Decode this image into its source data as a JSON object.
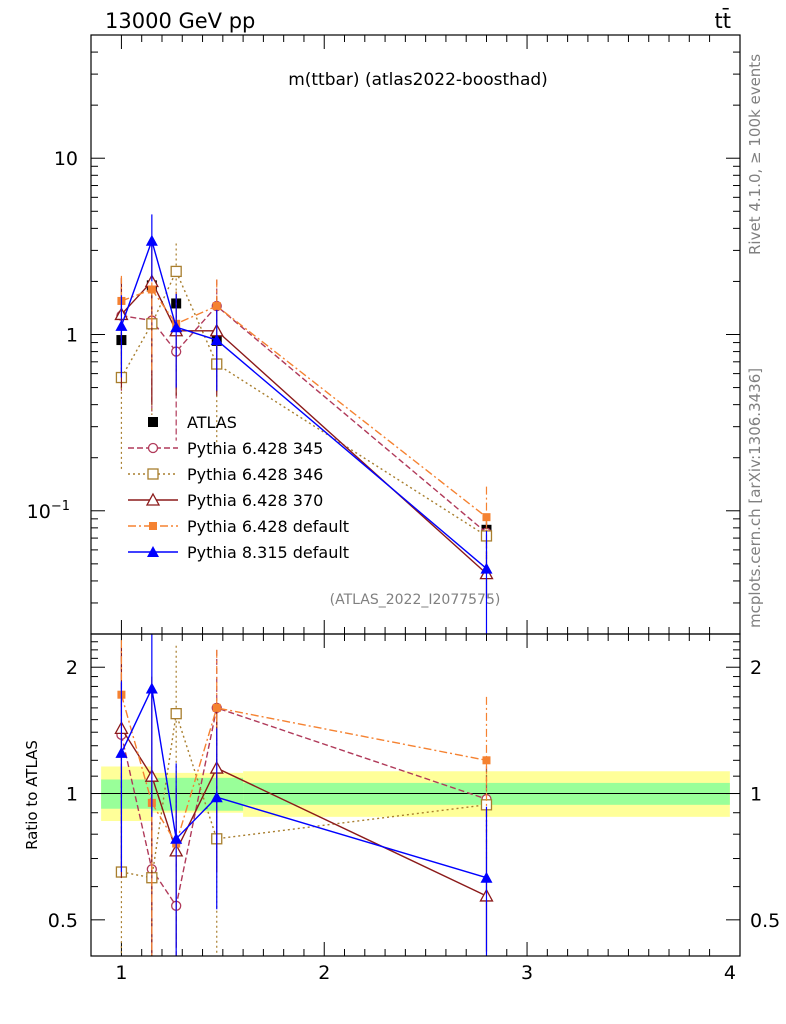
{
  "header": {
    "left": "13000 GeV pp",
    "right": "tt̄"
  },
  "side_labels": {
    "rivet": "Rivet 4.1.0, ≥ 100k events",
    "mcplots": "mcplots.cern.ch [arXiv:1306.3436]"
  },
  "chart_data": [
    {
      "type": "line",
      "title": "m(ttbar) (atlas2022-boosthad)",
      "watermark": "(ATLAS_2022_I2077575)",
      "xlim": [
        0.85,
        4.05
      ],
      "ylim": [
        0.02,
        50
      ],
      "yscale": "log",
      "yticks": [
        {
          "value": 0.1,
          "label": "10^-1"
        },
        {
          "value": 1,
          "label": "1"
        },
        {
          "value": 10,
          "label": "10"
        }
      ],
      "series": [
        {
          "name": "ATLAS",
          "color": "#000000",
          "marker": "square-filled",
          "line": "none",
          "x": [
            1.0,
            1.15,
            1.27,
            1.47,
            2.8
          ],
          "y": [
            0.93,
            1.9,
            1.5,
            0.92,
            0.078
          ],
          "err": [
            0.1,
            0.3,
            0.25,
            0.1,
            0.01
          ]
        },
        {
          "name": "Pythia 6.428 345",
          "color": "#b03a5a",
          "marker": "circle-open",
          "line": "dashed",
          "x": [
            1.0,
            1.15,
            1.27,
            1.47,
            2.8
          ],
          "y": [
            1.28,
            1.2,
            0.8,
            1.45,
            0.075
          ],
          "err": [
            0.8,
            0.85,
            0.55,
            0.6,
            0.02
          ]
        },
        {
          "name": "Pythia 6.428 346",
          "color": "#a87e2e",
          "marker": "square-open",
          "line": "dotted",
          "x": [
            1.0,
            1.15,
            1.27,
            1.47,
            2.8
          ],
          "y": [
            0.57,
            1.15,
            2.28,
            0.68,
            0.072
          ],
          "err": [
            0.4,
            0.8,
            1.0,
            0.45,
            0.02
          ]
        },
        {
          "name": "Pythia 6.428 370",
          "color": "#8b1a1a",
          "marker": "triangle-open",
          "line": "solid",
          "x": [
            1.0,
            1.15,
            1.27,
            1.47,
            2.8
          ],
          "y": [
            1.3,
            2.0,
            1.05,
            1.05,
            0.044
          ],
          "err": [
            0.8,
            1.6,
            0.6,
            0.6,
            0.012
          ]
        },
        {
          "name": "Pythia 6.428 default",
          "color": "#f58231",
          "marker": "square-filled-small",
          "line": "dashdot",
          "x": [
            1.0,
            1.15,
            1.27,
            1.47,
            2.8
          ],
          "y": [
            1.55,
            1.8,
            1.15,
            1.45,
            0.092
          ],
          "err": [
            0.6,
            1.2,
            0.6,
            0.6,
            0.045
          ]
        },
        {
          "name": "Pythia 8.315 default",
          "color": "#0000ff",
          "marker": "triangle-filled",
          "line": "solid",
          "x": [
            1.0,
            1.15,
            1.27,
            1.47,
            2.8
          ],
          "y": [
            1.12,
            3.4,
            1.1,
            0.93,
            0.047
          ],
          "err": [
            0.55,
            1.4,
            0.6,
            0.45,
            0.03
          ]
        }
      ]
    },
    {
      "type": "line",
      "ylabel": "Ratio to ATLAS",
      "xlim": [
        0.85,
        4.05
      ],
      "ylim": [
        0.41,
        2.4
      ],
      "yscale": "log",
      "xticks": [
        1,
        2,
        3,
        4
      ],
      "yticks": [
        0.5,
        1,
        2
      ],
      "band_inner": [
        {
          "x0": 0.9,
          "x1": 1.15,
          "lo": 0.92,
          "hi": 1.08
        },
        {
          "x0": 1.15,
          "x1": 1.6,
          "lo": 0.91,
          "hi": 1.09
        },
        {
          "x0": 1.6,
          "x1": 4.0,
          "lo": 0.94,
          "hi": 1.06
        }
      ],
      "band_outer": [
        {
          "x0": 0.9,
          "x1": 1.15,
          "lo": 0.86,
          "hi": 1.16
        },
        {
          "x0": 1.15,
          "x1": 1.6,
          "lo": 0.9,
          "hi": 1.12
        },
        {
          "x0": 1.6,
          "x1": 4.0,
          "lo": 0.88,
          "hi": 1.13
        }
      ],
      "series": [
        {
          "name": "Pythia 6.428 345",
          "x": [
            1.0,
            1.15,
            1.27,
            1.47,
            2.8
          ],
          "y": [
            1.38,
            0.66,
            0.54,
            1.6,
            0.97
          ],
          "err": [
            0.75,
            0.5,
            0.3,
            0.6,
            0.25
          ]
        },
        {
          "name": "Pythia 6.428 346",
          "x": [
            1.0,
            1.15,
            1.27,
            1.47,
            2.8
          ],
          "y": [
            0.65,
            0.63,
            1.55,
            0.78,
            0.94
          ],
          "err": [
            0.45,
            0.45,
            0.7,
            0.45,
            0.2
          ]
        },
        {
          "name": "Pythia 6.428 370",
          "x": [
            1.0,
            1.15,
            1.27,
            1.47,
            2.8
          ],
          "y": [
            1.43,
            1.1,
            0.73,
            1.15,
            0.57
          ],
          "err": [
            0.8,
            0.8,
            0.3,
            0.5,
            0.15
          ]
        },
        {
          "name": "Pythia 6.428 default",
          "x": [
            1.0,
            1.15,
            1.27,
            1.47,
            2.8
          ],
          "y": [
            1.72,
            0.95,
            0.76,
            1.6,
            1.2
          ],
          "err": [
            0.6,
            0.7,
            0.25,
            0.6,
            0.5
          ]
        },
        {
          "name": "Pythia 8.315 default",
          "x": [
            1.0,
            1.15,
            1.27,
            1.47,
            2.8
          ],
          "y": [
            1.25,
            1.78,
            0.78,
            0.98,
            0.63
          ],
          "err": [
            0.6,
            0.9,
            0.4,
            0.45,
            0.3
          ]
        }
      ]
    }
  ]
}
